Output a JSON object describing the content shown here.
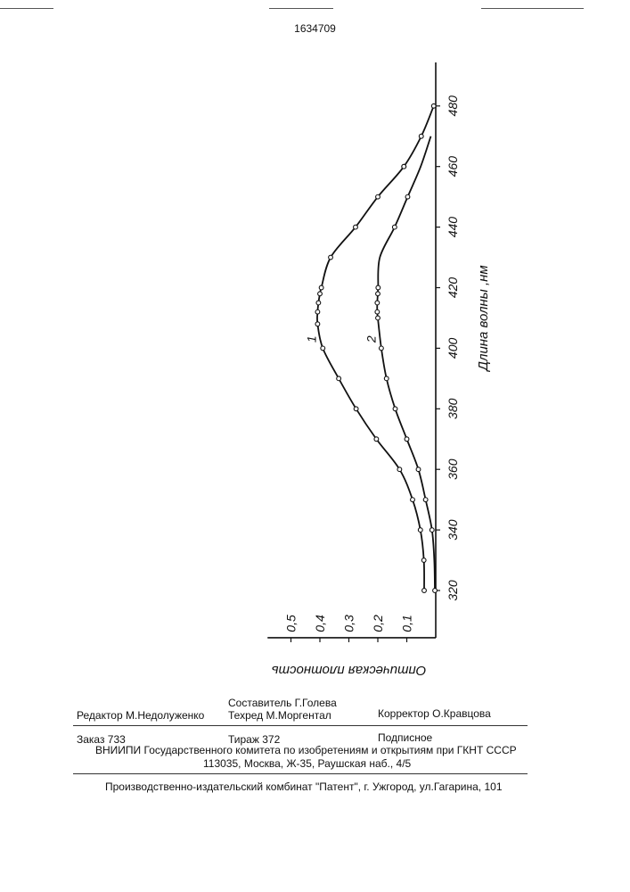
{
  "document": {
    "patent_number": "1634709"
  },
  "chart_data": {
    "type": "line",
    "orientation": "rotated-90",
    "xlabel": "Длина волны ,нм",
    "ylabel": "Оптическая плотность",
    "x_ticks": [
      "320",
      "340",
      "360",
      "380",
      "400",
      "420",
      "440",
      "460",
      "480"
    ],
    "y_ticks": [
      "0,1",
      "0,2",
      "0,3",
      "0,4",
      "0,5"
    ],
    "xlim": [
      315,
      495
    ],
    "ylim": [
      0,
      0.55
    ],
    "grid": false,
    "series": [
      {
        "name": "1",
        "points": [
          [
            320,
            0.04
          ],
          [
            330,
            0.041
          ],
          [
            340,
            0.053
          ],
          [
            350,
            0.08
          ],
          [
            360,
            0.125
          ],
          [
            370,
            0.205
          ],
          [
            380,
            0.275
          ],
          [
            390,
            0.335
          ],
          [
            400,
            0.39
          ],
          [
            408,
            0.408
          ],
          [
            412,
            0.408
          ],
          [
            415,
            0.405
          ],
          [
            418,
            0.4
          ],
          [
            420,
            0.395
          ],
          [
            430,
            0.363
          ],
          [
            440,
            0.277
          ],
          [
            450,
            0.2
          ],
          [
            460,
            0.11
          ],
          [
            470,
            0.05
          ],
          [
            480,
            0.007
          ]
        ],
        "markers": [
          [
            320,
            0.04
          ],
          [
            330,
            0.041
          ],
          [
            340,
            0.053
          ],
          [
            350,
            0.08
          ],
          [
            360,
            0.125
          ],
          [
            370,
            0.205
          ],
          [
            380,
            0.275
          ],
          [
            390,
            0.335
          ],
          [
            400,
            0.39
          ],
          [
            408,
            0.408
          ],
          [
            412,
            0.408
          ],
          [
            415,
            0.405
          ],
          [
            418,
            0.4
          ],
          [
            420,
            0.395
          ],
          [
            430,
            0.363
          ],
          [
            440,
            0.277
          ],
          [
            450,
            0.2
          ],
          [
            460,
            0.11
          ],
          [
            470,
            0.05
          ],
          [
            480,
            0.007
          ]
        ]
      },
      {
        "name": "2",
        "points": [
          [
            320,
            0.003
          ],
          [
            330,
            0.005
          ],
          [
            340,
            0.013
          ],
          [
            350,
            0.035
          ],
          [
            360,
            0.06
          ],
          [
            370,
            0.1
          ],
          [
            380,
            0.14
          ],
          [
            390,
            0.17
          ],
          [
            400,
            0.188
          ],
          [
            410,
            0.2
          ],
          [
            412,
            0.202
          ],
          [
            415,
            0.202
          ],
          [
            418,
            0.2
          ],
          [
            420,
            0.199
          ],
          [
            430,
            0.193
          ],
          [
            440,
            0.142
          ],
          [
            450,
            0.097
          ],
          [
            460,
            0.052
          ],
          [
            470,
            0.017
          ]
        ],
        "markers": [
          [
            320,
            0.003
          ],
          [
            340,
            0.013
          ],
          [
            350,
            0.035
          ],
          [
            360,
            0.06
          ],
          [
            370,
            0.1
          ],
          [
            380,
            0.14
          ],
          [
            390,
            0.17
          ],
          [
            400,
            0.188
          ],
          [
            410,
            0.2
          ],
          [
            412,
            0.202
          ],
          [
            415,
            0.202
          ],
          [
            418,
            0.2
          ],
          [
            420,
            0.199
          ],
          [
            440,
            0.142
          ],
          [
            450,
            0.097
          ],
          [
            460,
            0.11
          ]
        ]
      }
    ]
  },
  "colophon": {
    "editor": "Редактор  М.Недолуженко",
    "compiler": "Составитель  Г.Голева",
    "techred": "Техред М.Моргентал",
    "corrector": "Корректор  О.Кравцова",
    "order": "Заказ  733",
    "circulation": "Тираж  372",
    "subscription": "Подписное",
    "vniipi": "ВНИИПИ Государственного комитета по изобретениям и открытиям при ГКНТ СССР",
    "address": "113035, Москва, Ж-35, Раушская наб., 4/5",
    "publisher": "Производственно-издательский комбинат \"Патент\", г. Ужгород, ул.Гагарина, 101"
  }
}
